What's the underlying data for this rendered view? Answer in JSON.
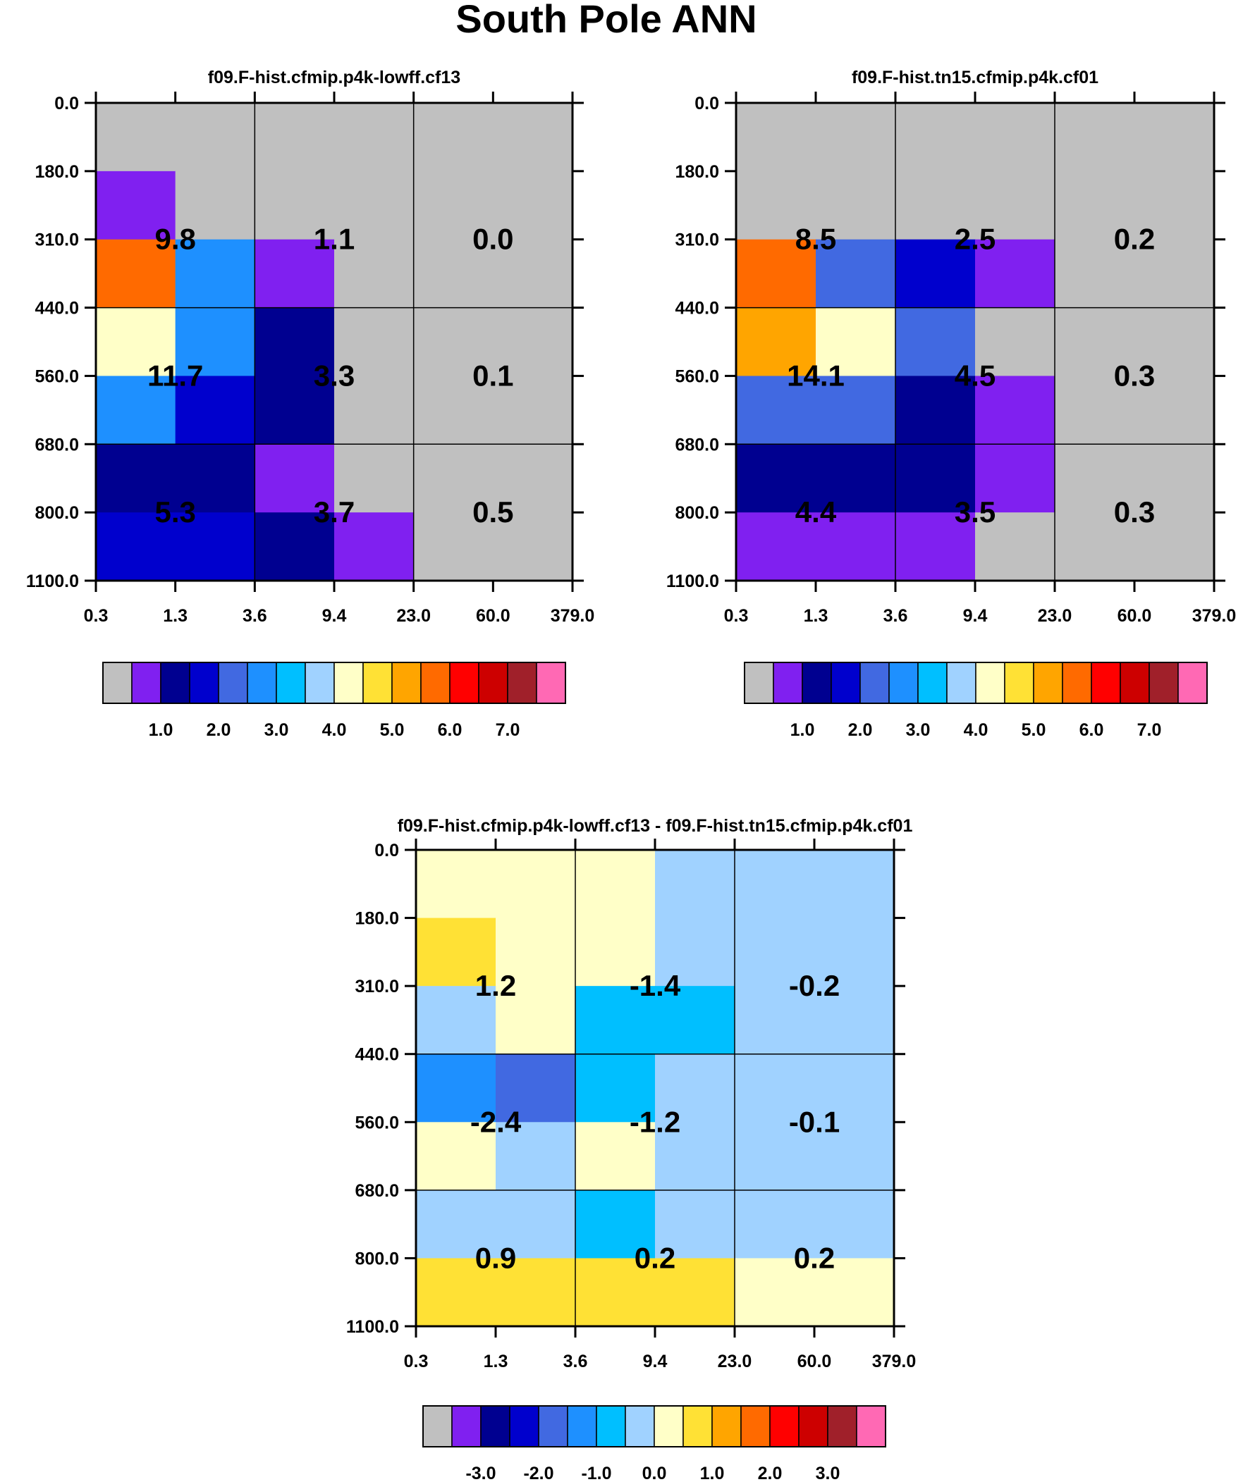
{
  "page": {
    "title": "South Pole ANN"
  },
  "axes": {
    "y_ticks": [
      "0.0",
      "180.0",
      "310.0",
      "440.0",
      "560.0",
      "680.0",
      "800.0",
      "1100.0"
    ],
    "x_ticks": [
      "0.3",
      "1.3",
      "3.6",
      "9.4",
      "23.0",
      "60.0",
      "379.0"
    ]
  },
  "palette": {
    "colors": [
      "#c0c0c0",
      "#8020f0",
      "#000090",
      "#0000cd",
      "#4169e1",
      "#1e90ff",
      "#00bfff",
      "#a0d2ff",
      "#ffffc8",
      "#ffe135",
      "#ffa500",
      "#ff6a00",
      "#ff0000",
      "#cd0000",
      "#a0202a",
      "#ff69b4"
    ]
  },
  "chart_data": [
    {
      "type": "heatmap",
      "title": "f09.F-hist.cfmip.p4k-lowff.cf13",
      "y_edges": [
        0,
        180,
        310,
        440,
        560,
        680,
        800,
        1100
      ],
      "x_edges": [
        0.3,
        1.3,
        3.6,
        9.4,
        23.0,
        60.0,
        379.0
      ],
      "cells": [
        [
          0,
          0,
          0,
          0,
          0,
          0
        ],
        [
          1,
          0,
          0,
          0,
          0,
          0
        ],
        [
          11,
          5,
          1,
          0,
          0,
          0
        ],
        [
          8,
          5,
          2,
          0,
          0,
          0
        ],
        [
          5,
          3,
          2,
          0,
          0,
          0
        ],
        [
          2,
          2,
          1,
          0,
          0,
          0
        ],
        [
          3,
          3,
          2,
          1,
          0,
          0
        ]
      ],
      "block_labels": [
        [
          "9.8",
          "1.1",
          "0.0"
        ],
        [
          "11.7",
          "3.3",
          "0.1"
        ],
        [
          "5.3",
          "3.7",
          "0.5"
        ]
      ],
      "colorbar": {
        "labels": [
          "1.0",
          "2.0",
          "3.0",
          "4.0",
          "5.0",
          "6.0",
          "7.0"
        ]
      }
    },
    {
      "type": "heatmap",
      "title": "f09.F-hist.tn15.cfmip.p4k.cf01",
      "y_edges": [
        0,
        180,
        310,
        440,
        560,
        680,
        800,
        1100
      ],
      "x_edges": [
        0.3,
        1.3,
        3.6,
        9.4,
        23.0,
        60.0,
        379.0
      ],
      "cells": [
        [
          0,
          0,
          0,
          0,
          0,
          0
        ],
        [
          0,
          0,
          0,
          0,
          0,
          0
        ],
        [
          11,
          4,
          3,
          1,
          0,
          0
        ],
        [
          10,
          8,
          4,
          0,
          0,
          0
        ],
        [
          4,
          4,
          2,
          1,
          0,
          0
        ],
        [
          2,
          2,
          2,
          1,
          0,
          0
        ],
        [
          1,
          1,
          1,
          0,
          0,
          0
        ]
      ],
      "block_labels": [
        [
          "8.5",
          "2.5",
          "0.2"
        ],
        [
          "14.1",
          "4.5",
          "0.3"
        ],
        [
          "4.4",
          "3.5",
          "0.3"
        ]
      ],
      "colorbar": {
        "labels": [
          "1.0",
          "2.0",
          "3.0",
          "4.0",
          "5.0",
          "6.0",
          "7.0"
        ]
      }
    },
    {
      "type": "heatmap",
      "title": "f09.F-hist.cfmip.p4k-lowff.cf13 - f09.F-hist.tn15.cfmip.p4k.cf01",
      "y_edges": [
        0,
        180,
        310,
        440,
        560,
        680,
        800,
        1100
      ],
      "x_edges": [
        0.3,
        1.3,
        3.6,
        9.4,
        23.0,
        60.0,
        379.0
      ],
      "cells": [
        [
          8,
          8,
          8,
          7,
          7,
          7
        ],
        [
          9,
          8,
          8,
          7,
          7,
          7
        ],
        [
          7,
          8,
          6,
          6,
          7,
          7
        ],
        [
          5,
          4,
          6,
          7,
          7,
          7
        ],
        [
          8,
          7,
          8,
          7,
          7,
          7
        ],
        [
          7,
          7,
          6,
          7,
          7,
          7
        ],
        [
          9,
          9,
          9,
          9,
          8,
          8
        ]
      ],
      "block_labels": [
        [
          "1.2",
          "-1.4",
          "-0.2"
        ],
        [
          "-2.4",
          "-1.2",
          "-0.1"
        ],
        [
          "0.9",
          "0.2",
          "0.2"
        ]
      ],
      "colorbar": {
        "labels": [
          "-3.0",
          "-2.0",
          "-1.0",
          "0.0",
          "1.0",
          "2.0",
          "3.0"
        ]
      }
    }
  ]
}
